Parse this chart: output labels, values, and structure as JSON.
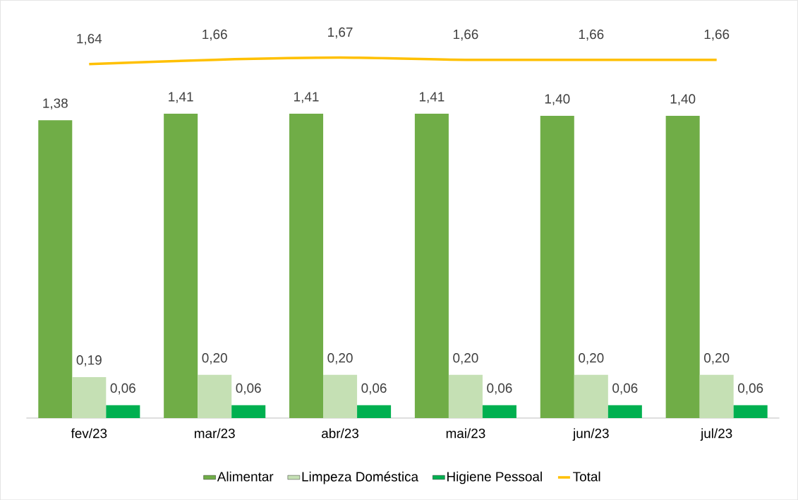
{
  "chart_data": {
    "type": "bar",
    "categories": [
      "fev/23",
      "mar/23",
      "abr/23",
      "mai/23",
      "jun/23",
      "jul/23"
    ],
    "series": [
      {
        "name": "Alimentar",
        "color": "#70ad47",
        "values": [
          1.38,
          1.41,
          1.41,
          1.41,
          1.4,
          1.4
        ],
        "value_labels": [
          "1,38",
          "1,41",
          "1,41",
          "1,41",
          "1,40",
          "1,40"
        ]
      },
      {
        "name": "Limpeza Doméstica",
        "color": "#c5e0b4",
        "values": [
          0.19,
          0.2,
          0.2,
          0.2,
          0.2,
          0.2
        ],
        "value_labels": [
          "0,19",
          "0,20",
          "0,20",
          "0,20",
          "0,20",
          "0,20"
        ]
      },
      {
        "name": "Higiene Pessoal",
        "color": "#00b050",
        "values": [
          0.06,
          0.06,
          0.06,
          0.06,
          0.06,
          0.06
        ],
        "value_labels": [
          "0,06",
          "0,06",
          "0,06",
          "0,06",
          "0,06",
          "0,06"
        ]
      },
      {
        "name": "Total",
        "type": "line",
        "color": "#ffc000",
        "values": [
          1.64,
          1.66,
          1.67,
          1.66,
          1.66,
          1.66
        ],
        "value_labels": [
          "1,64",
          "1,66",
          "1,67",
          "1,66",
          "1,66",
          "1,66"
        ]
      }
    ],
    "legend": "bottom",
    "marker": "none",
    "line_style": "solid"
  }
}
